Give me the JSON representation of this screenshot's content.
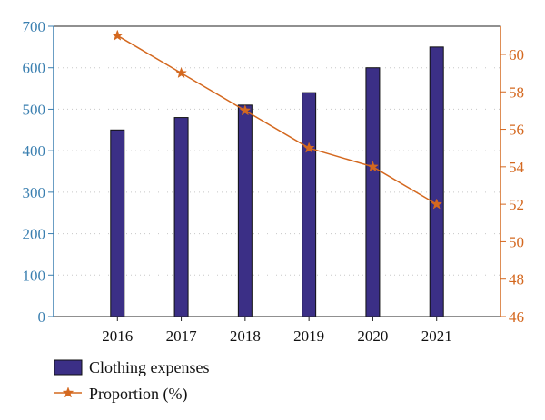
{
  "chart_data": {
    "type": "bar+line",
    "categories": [
      "2016",
      "2017",
      "2018",
      "2019",
      "2020",
      "2021"
    ],
    "series": [
      {
        "name": "Clothing expenses",
        "type": "bar",
        "axis": "left",
        "color": "#3b2f86",
        "values": [
          450,
          480,
          510,
          540,
          600,
          650
        ]
      },
      {
        "name": "Proportion (%)",
        "type": "line",
        "axis": "right",
        "marker": "star",
        "color": "#d4681f",
        "values": [
          61,
          59,
          57,
          55,
          54,
          52
        ]
      }
    ],
    "y_left": {
      "lim": [
        0,
        700
      ],
      "ticks": [
        "0",
        "100",
        "200",
        "300",
        "400",
        "500",
        "600",
        "700"
      ],
      "color": "#3a7fb0"
    },
    "y_right": {
      "lim": [
        46,
        61.5
      ],
      "ticks": [
        "46",
        "48",
        "50",
        "52",
        "54",
        "56",
        "58",
        "60"
      ],
      "color": "#d4681f"
    },
    "grid": "dotted-horizontal",
    "legend_position": "bottom-left"
  }
}
